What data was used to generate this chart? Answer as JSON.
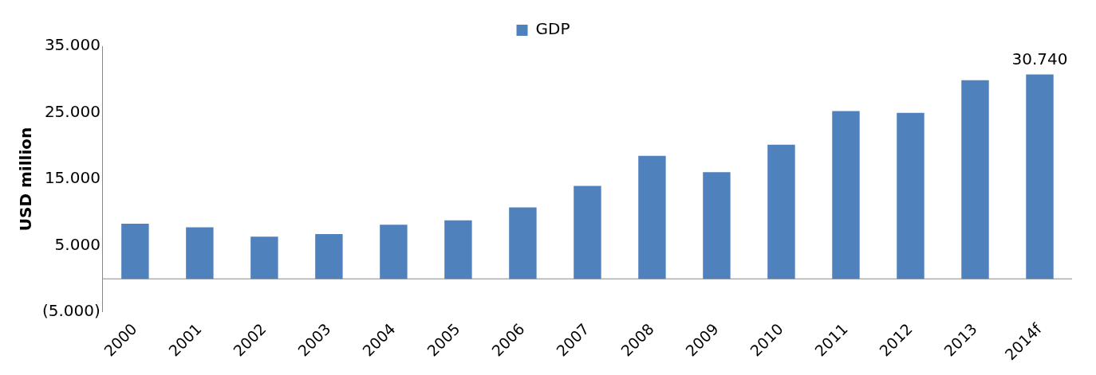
{
  "chart_data": {
    "type": "bar",
    "ylabel": "USD million",
    "categories": [
      "2000",
      "2001",
      "2002",
      "2003",
      "2004",
      "2005",
      "2006",
      "2007",
      "2008",
      "2009",
      "2010",
      "2011",
      "2012",
      "2013",
      "2014f"
    ],
    "series": [
      {
        "name": "GDP",
        "color": "#4f81bd",
        "values": [
          8280,
          7760,
          6340,
          6730,
          8150,
          8800,
          10740,
          13970,
          18500,
          16040,
          20180,
          25230,
          24970,
          29880,
          30740
        ],
        "value_labels": [
          null,
          null,
          null,
          null,
          null,
          null,
          null,
          null,
          null,
          null,
          null,
          null,
          null,
          null,
          "30.740"
        ]
      }
    ],
    "ylim": [
      -5000,
      35000
    ],
    "yticks": [
      {
        "value": -5000,
        "label": "(5.000)"
      },
      {
        "value": 5000,
        "label": "5.000"
      },
      {
        "value": 15000,
        "label": "15.000"
      },
      {
        "value": 25000,
        "label": "25.000"
      },
      {
        "value": 35000,
        "label": "35.000"
      }
    ],
    "grid": false,
    "legend": "top"
  }
}
